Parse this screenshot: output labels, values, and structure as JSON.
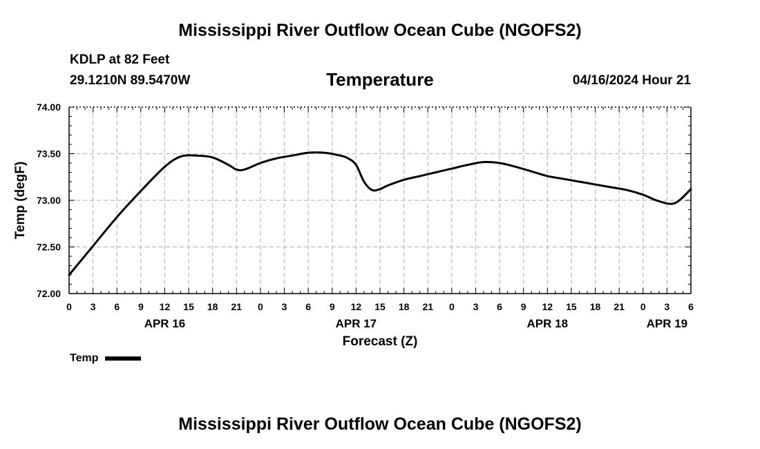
{
  "header": {
    "title": "Mississippi River Outflow Ocean Cube (NGOFS2)",
    "station": "KDLP at 82 Feet",
    "coordinates": "29.1210N  89.5470W",
    "variable_title": "Temperature",
    "datetime": "04/16/2024 Hour 21"
  },
  "footer": {
    "title": "Mississippi River Outflow Ocean Cube (NGOFS2)"
  },
  "legend": {
    "label": "Temp"
  },
  "chart_data": {
    "type": "line",
    "title": "Temperature",
    "xlabel": "Forecast (Z)",
    "ylabel": "Temp (degF)",
    "xlim": [
      0,
      78
    ],
    "ylim": [
      72.0,
      74.0
    ],
    "grid": true,
    "yticks": [
      "72.00",
      "72.50",
      "73.00",
      "73.50",
      "74.00"
    ],
    "xtick_labels": [
      "0",
      "3",
      "6",
      "9",
      "12",
      "15",
      "18",
      "21",
      "0",
      "3",
      "6",
      "9",
      "12",
      "15",
      "18",
      "21",
      "0",
      "3",
      "6",
      "9",
      "12",
      "15",
      "18",
      "21",
      "0",
      "3",
      "6"
    ],
    "day_labels": [
      {
        "label": "APR 16",
        "hour": 12
      },
      {
        "label": "APR 17",
        "hour": 36
      },
      {
        "label": "APR 18",
        "hour": 60
      },
      {
        "label": "APR 19",
        "hour": 75
      }
    ],
    "series": [
      {
        "name": "Temp",
        "color": "#000000",
        "x": [
          0,
          3,
          6,
          9,
          12,
          14,
          16,
          18,
          20,
          21,
          22,
          24,
          26,
          28,
          30,
          32,
          34,
          35,
          36,
          37,
          38,
          39,
          40,
          42,
          44,
          46,
          48,
          50,
          52,
          54,
          56,
          58,
          60,
          62,
          64,
          66,
          68,
          70,
          72,
          74,
          76,
          78
        ],
        "values": [
          72.2,
          72.51,
          72.82,
          73.1,
          73.36,
          73.47,
          73.48,
          73.46,
          73.38,
          73.33,
          73.33,
          73.4,
          73.45,
          73.48,
          73.51,
          73.51,
          73.48,
          73.45,
          73.38,
          73.2,
          73.11,
          73.12,
          73.16,
          73.22,
          73.26,
          73.3,
          73.34,
          73.38,
          73.41,
          73.4,
          73.36,
          73.31,
          73.26,
          73.23,
          73.2,
          73.17,
          73.14,
          73.11,
          73.06,
          72.99,
          72.97,
          73.12
        ]
      }
    ]
  }
}
